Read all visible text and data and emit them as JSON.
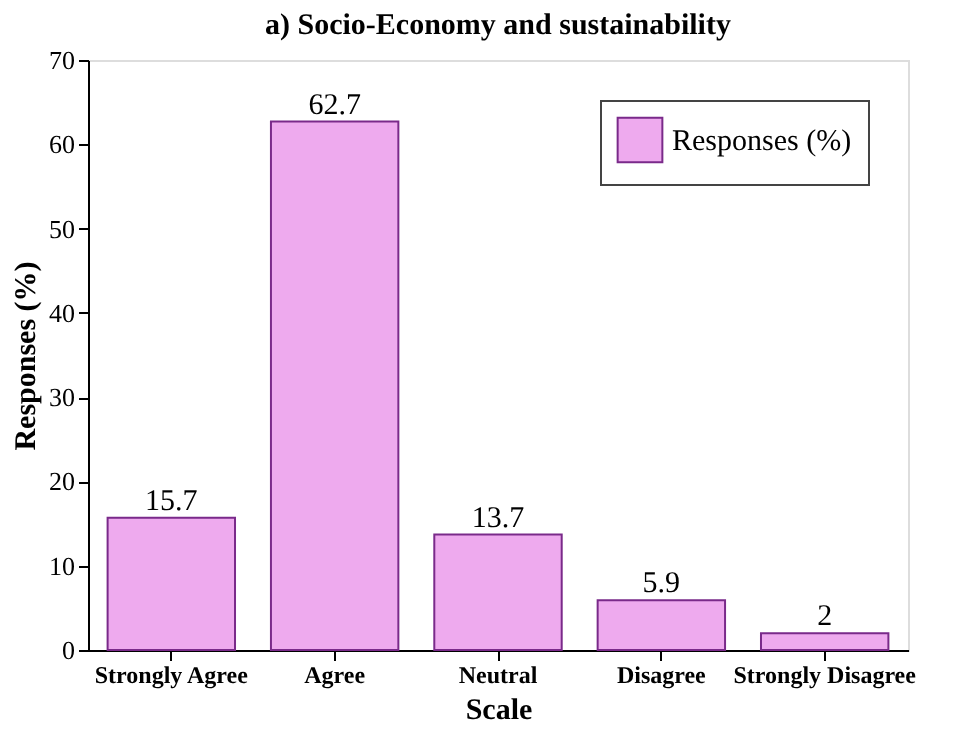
{
  "chart_data": {
    "type": "bar",
    "title": "a) Socio-Economy and sustainability",
    "xlabel": "Scale",
    "ylabel": "Responses (%)",
    "categories": [
      "Strongly Agree",
      "Agree",
      "Neutral",
      "Disagree",
      "Strongly Disagree"
    ],
    "series": [
      {
        "name": "Responses (%)",
        "color": "#eeaaee",
        "values": [
          15.7,
          62.7,
          13.7,
          5.9,
          2
        ]
      }
    ],
    "ylim": [
      0,
      70
    ],
    "yticks": [
      0,
      10,
      20,
      30,
      40,
      50,
      60,
      70
    ],
    "data_labels": true,
    "grid": false,
    "legend": "top right"
  }
}
